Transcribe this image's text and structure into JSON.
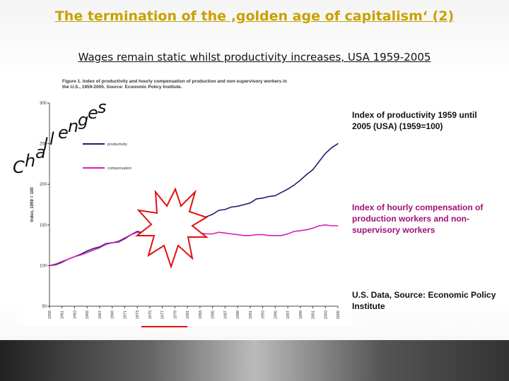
{
  "slide": {
    "title": "The termination of the ‚golden age of capitalism‘ (2)",
    "subtitle": "Wages remain static whilst productivity increases, USA 1959-2005"
  },
  "figure": {
    "caption_line1": "Figure 1. Index of productivity and hourly compensation of production and non-supervisory workers in",
    "caption_line2": "the U.S., 1959-2005. Source: Economic Policy Institute."
  },
  "annotations": {
    "productivity": "Index of productivity 1959 until 2005 (USA) (1959=100)",
    "compensation": "Index of hourly compensation of production workers and non-supervisory workers",
    "source": "U.S. Data, Source: Economic Policy Institute"
  },
  "overlay_word": "Challenges",
  "colors": {
    "title": "#c9a100",
    "productivity": "#1b1f6e",
    "compensation": "#d81fb3",
    "starburst": "#e01010"
  },
  "chart_data": {
    "type": "line",
    "ylabel": "Index, 1959 = 100",
    "ylim": [
      50,
      300
    ],
    "yticks": [
      50,
      100,
      150,
      200,
      250,
      300
    ],
    "x": [
      "1959",
      "1960",
      "1961",
      "1962",
      "1963",
      "1964",
      "1965",
      "1966",
      "1967",
      "1968",
      "1969",
      "1970",
      "1971",
      "1972",
      "1973",
      "1974",
      "1975",
      "1976",
      "1977",
      "1978",
      "1979",
      "1980",
      "1981",
      "1982",
      "1983",
      "1984",
      "1985",
      "1986",
      "1987",
      "1988",
      "1989",
      "1990",
      "1991",
      "1992",
      "1993",
      "1994",
      "1995",
      "1996",
      "1997",
      "1998",
      "1999",
      "2000",
      "2001",
      "2002",
      "2003",
      "2004",
      "2005"
    ],
    "xtick_labels": [
      "1959",
      "1961",
      "1963",
      "1965",
      "1967",
      "1969",
      "1971",
      "1973",
      "1975",
      "1977",
      "1979",
      "1981",
      "1983",
      "1985",
      "1987",
      "1989",
      "1991",
      "1993",
      "1995",
      "1997",
      "1999",
      "2001",
      "2003",
      "2005"
    ],
    "legend_position": "top-left",
    "series": [
      {
        "name": "productivity",
        "values": [
          100,
          101,
          104,
          108,
          111,
          114,
          118,
          121,
          123,
          127,
          128,
          129,
          133,
          138,
          142,
          140,
          142,
          148,
          150,
          151,
          151,
          150,
          152,
          150,
          156,
          160,
          163,
          168,
          169,
          172,
          173,
          175,
          177,
          182,
          183,
          185,
          186,
          190,
          194,
          199,
          205,
          212,
          218,
          228,
          238,
          245,
          250
        ]
      },
      {
        "name": "compensation",
        "values": [
          100,
          102,
          105,
          108,
          111,
          113,
          116,
          119,
          122,
          126,
          128,
          130,
          134,
          138,
          141,
          139,
          139,
          141,
          143,
          144,
          143,
          139,
          139,
          141,
          140,
          139,
          139,
          141,
          140,
          139,
          138,
          137,
          137,
          138,
          138,
          137,
          137,
          137,
          139,
          142,
          143,
          144,
          146,
          149,
          150,
          149,
          149
        ]
      }
    ]
  }
}
